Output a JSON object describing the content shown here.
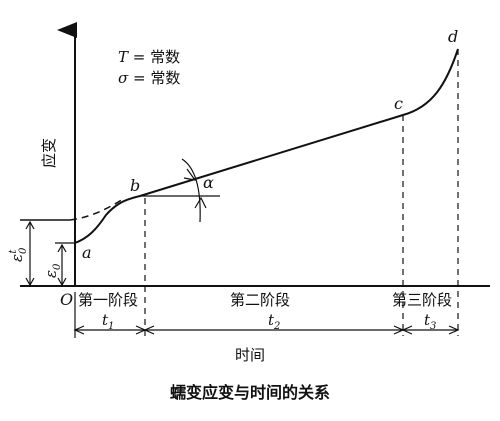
{
  "diagram": {
    "caption": "蠕变应变与时间的关系",
    "y_axis_label": "应变",
    "x_axis_label": "时间",
    "origin_label": "O",
    "conditions": {
      "temperature": {
        "symbol": "T",
        "text": " = 常数"
      },
      "stress": {
        "symbol": "σ",
        "text": " = 常数"
      }
    },
    "points": {
      "a": "a",
      "b": "b",
      "c": "c",
      "d": "d"
    },
    "angle_label": "α",
    "strain_labels": {
      "initial": "ε",
      "initial_sub": "0",
      "instant": "ε",
      "instant_sub": "0",
      "instant_sup": "t"
    },
    "stages": {
      "first": "第一阶段",
      "second": "第二阶段",
      "third": "第三阶段"
    },
    "intervals": {
      "t1": {
        "base": "t",
        "sub": "1"
      },
      "t2": {
        "base": "t",
        "sub": "2"
      },
      "t3": {
        "base": "t",
        "sub": "3"
      }
    }
  }
}
